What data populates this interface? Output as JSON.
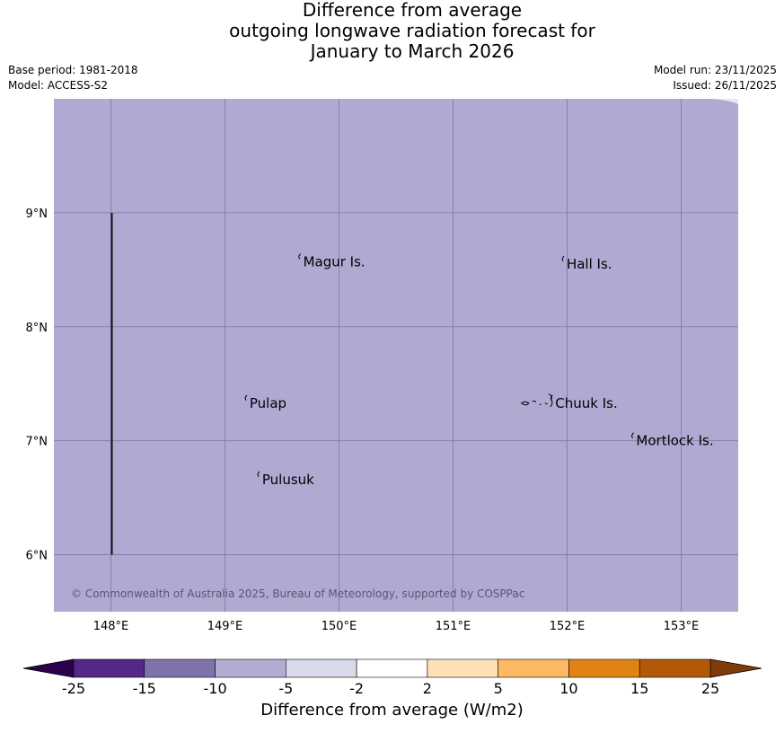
{
  "title": {
    "line1": "Difference from average",
    "line2": "outgoing longwave radiation forecast for",
    "line3": "January to March 2026"
  },
  "meta": {
    "base_period": "Base period: 1981-2018",
    "model": "Model: ACCESS-S2",
    "model_run": "Model run: 23/11/2025",
    "issued": "Issued: 26/11/2025"
  },
  "map": {
    "lon_range": [
      147.5,
      153.5
    ],
    "lat_range": [
      5.5,
      10.0
    ],
    "fill_color": "#b0aad3",
    "grid_color": "#7c77a0",
    "lon_ticks": [
      {
        "value": 148,
        "label": "148°E"
      },
      {
        "value": 149,
        "label": "149°E"
      },
      {
        "value": 150,
        "label": "150°E"
      },
      {
        "value": 151,
        "label": "151°E"
      },
      {
        "value": 152,
        "label": "152°E"
      },
      {
        "value": 153,
        "label": "153°E"
      }
    ],
    "lat_ticks": [
      {
        "value": 9,
        "label": "9°N"
      },
      {
        "value": 8,
        "label": "8°N"
      },
      {
        "value": 7,
        "label": "7°N"
      },
      {
        "value": 6,
        "label": "6°N"
      }
    ],
    "places": [
      {
        "name": "Magur Is.",
        "lon": 149.67,
        "lat": 8.57
      },
      {
        "name": "Hall Is.",
        "lon": 151.98,
        "lat": 8.55
      },
      {
        "name": "Pulap",
        "lon": 149.2,
        "lat": 7.33
      },
      {
        "name": "Chuuk Is.",
        "lon": 151.88,
        "lat": 7.33
      },
      {
        "name": "Mortlock Is.",
        "lon": 152.59,
        "lat": 7.0
      },
      {
        "name": "Pulusuk",
        "lon": 149.31,
        "lat": 6.66
      }
    ],
    "boundary_line": {
      "lon": 148,
      "lat_from": 6,
      "lat_to": 9
    },
    "copyright": "© Commonwealth of Australia 2025, Bureau of Meteorology, supported by COSPPac"
  },
  "colorbar": {
    "label": "Difference from average (W/m2)",
    "ticks": [
      "-25",
      "-15",
      "-10",
      "-5",
      "-2",
      "2",
      "5",
      "10",
      "15",
      "25"
    ],
    "colors": [
      "#542788",
      "#8073ac",
      "#b2abd2",
      "#d8daeb",
      "#ffffff",
      "#fee0b6",
      "#fdb863",
      "#e08214",
      "#b35806"
    ],
    "low_extend_color": "#2d004b",
    "high_extend_color": "#7f3b08"
  }
}
